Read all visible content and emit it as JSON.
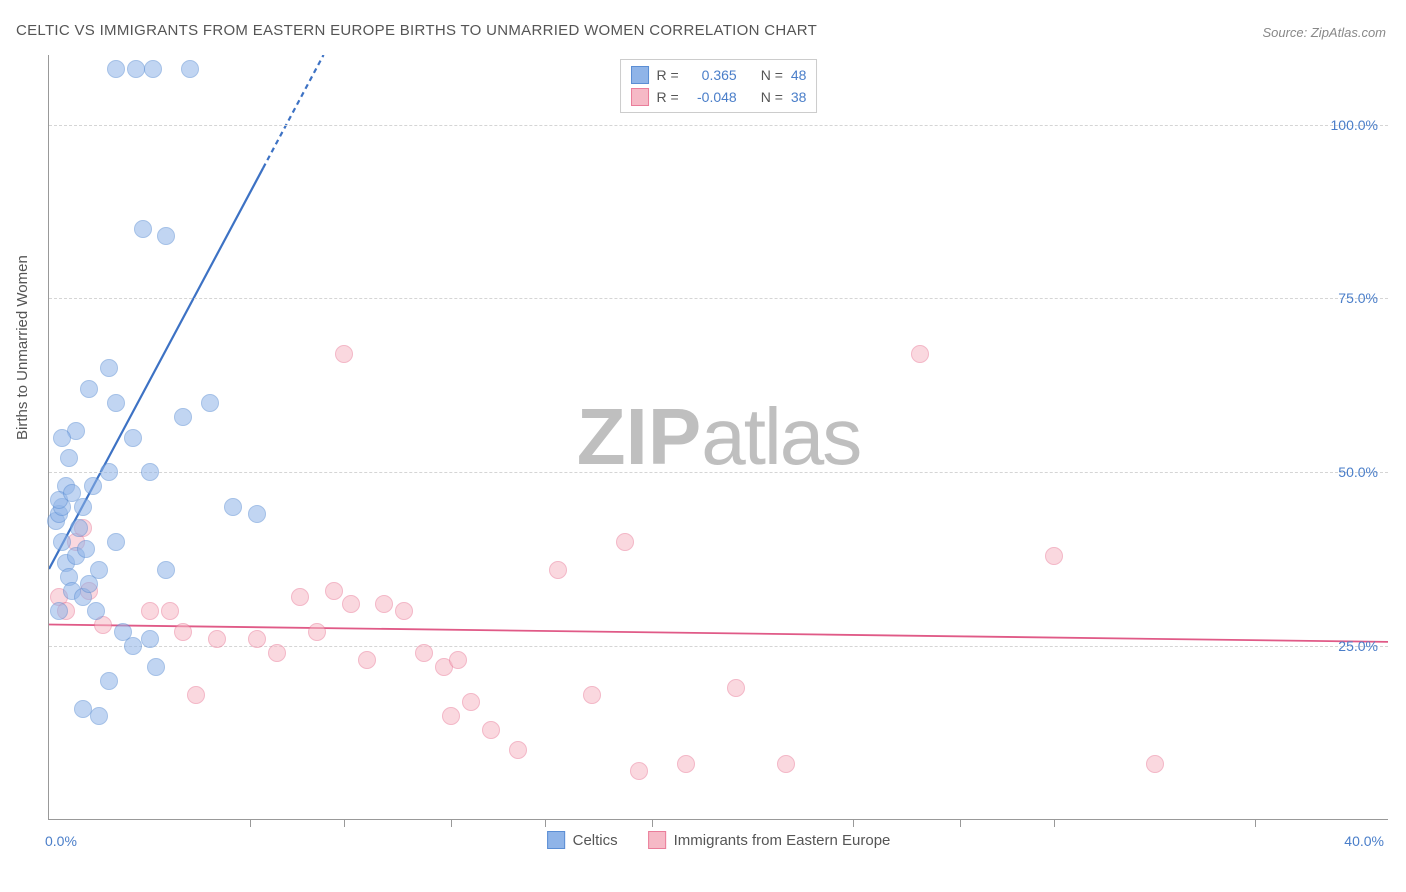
{
  "title": "CELTIC VS IMMIGRANTS FROM EASTERN EUROPE BIRTHS TO UNMARRIED WOMEN CORRELATION CHART",
  "source_label": "Source: ZipAtlas.com",
  "y_axis_title": "Births to Unmarried Women",
  "watermark": {
    "prefix": "ZIP",
    "suffix": "atlas"
  },
  "chart": {
    "type": "scatter",
    "xlim": [
      0,
      40
    ],
    "ylim": [
      0,
      110
    ],
    "x_ticks": [
      0,
      40
    ],
    "x_tick_labels": [
      "0.0%",
      "40.0%"
    ],
    "x_minor_tick_positions_pct": [
      15,
      22,
      30,
      37,
      45,
      60,
      68,
      75,
      90
    ],
    "y_ticks": [
      25,
      50,
      75,
      100
    ],
    "y_tick_labels": [
      "25.0%",
      "50.0%",
      "75.0%",
      "100.0%"
    ],
    "background_color": "#ffffff",
    "grid_color": "#d5d5d5",
    "marker_radius": 9,
    "marker_opacity": 0.55,
    "series": {
      "blue": {
        "label": "Celtics",
        "fill": "#8fb4e8",
        "stroke": "#5b8ed4",
        "r_label": "R =",
        "r_value": "0.365",
        "n_label": "N =",
        "n_value": "48",
        "trend": {
          "x1": 0,
          "y1": 36,
          "x2": 8.2,
          "y2": 110,
          "dashed_from_pct": 78,
          "color": "#3d72c4",
          "width": 2.2
        },
        "points": [
          [
            0.2,
            43
          ],
          [
            0.3,
            44
          ],
          [
            0.4,
            45
          ],
          [
            0.5,
            37
          ],
          [
            0.6,
            35
          ],
          [
            0.7,
            33
          ],
          [
            0.4,
            40
          ],
          [
            0.8,
            38
          ],
          [
            0.3,
            30
          ],
          [
            1.0,
            32
          ],
          [
            1.2,
            34
          ],
          [
            1.5,
            36
          ],
          [
            1.0,
            45
          ],
          [
            1.3,
            48
          ],
          [
            1.8,
            50
          ],
          [
            2.0,
            40
          ],
          [
            2.2,
            27
          ],
          [
            2.5,
            25
          ],
          [
            3.0,
            26
          ],
          [
            3.2,
            22
          ],
          [
            1.2,
            62
          ],
          [
            1.8,
            65
          ],
          [
            2.0,
            60
          ],
          [
            2.5,
            55
          ],
          [
            3.0,
            50
          ],
          [
            4.0,
            58
          ],
          [
            4.8,
            60
          ],
          [
            5.5,
            45
          ],
          [
            6.2,
            44
          ],
          [
            3.5,
            36
          ],
          [
            2.8,
            85
          ],
          [
            3.5,
            84
          ],
          [
            2.0,
            108
          ],
          [
            2.6,
            108
          ],
          [
            3.1,
            108
          ],
          [
            4.2,
            108
          ],
          [
            1.0,
            16
          ],
          [
            1.5,
            15
          ],
          [
            1.8,
            20
          ],
          [
            0.6,
            52
          ],
          [
            0.8,
            56
          ],
          [
            0.5,
            48
          ],
          [
            0.9,
            42
          ],
          [
            1.1,
            39
          ],
          [
            1.4,
            30
          ],
          [
            0.3,
            46
          ],
          [
            0.7,
            47
          ],
          [
            0.4,
            55
          ]
        ]
      },
      "pink": {
        "label": "Immigrants from Eastern Europe",
        "fill": "#f6b9c6",
        "stroke": "#ea7d9a",
        "r_label": "R =",
        "r_value": "-0.048",
        "n_label": "N =",
        "n_value": "38",
        "trend": {
          "x1": 0,
          "y1": 28,
          "x2": 40,
          "y2": 25.5,
          "color": "#e05a87",
          "width": 1.8
        },
        "points": [
          [
            0.3,
            32
          ],
          [
            0.5,
            30
          ],
          [
            0.8,
            40
          ],
          [
            1.0,
            42
          ],
          [
            1.2,
            33
          ],
          [
            1.6,
            28
          ],
          [
            3.0,
            30
          ],
          [
            3.6,
            30
          ],
          [
            4.0,
            27
          ],
          [
            4.4,
            18
          ],
          [
            5.0,
            26
          ],
          [
            6.2,
            26
          ],
          [
            6.8,
            24
          ],
          [
            7.5,
            32
          ],
          [
            8.0,
            27
          ],
          [
            8.5,
            33
          ],
          [
            9.0,
            31
          ],
          [
            9.5,
            23
          ],
          [
            10.0,
            31
          ],
          [
            10.6,
            30
          ],
          [
            11.2,
            24
          ],
          [
            11.8,
            22
          ],
          [
            12.2,
            23
          ],
          [
            12.0,
            15
          ],
          [
            12.6,
            17
          ],
          [
            13.2,
            13
          ],
          [
            14.0,
            10
          ],
          [
            15.2,
            36
          ],
          [
            16.2,
            18
          ],
          [
            17.2,
            40
          ],
          [
            17.6,
            7
          ],
          [
            19.0,
            8
          ],
          [
            20.5,
            19
          ],
          [
            22.0,
            8
          ],
          [
            26.0,
            67
          ],
          [
            30.0,
            38
          ],
          [
            33.0,
            8
          ],
          [
            8.8,
            67
          ]
        ]
      }
    }
  }
}
